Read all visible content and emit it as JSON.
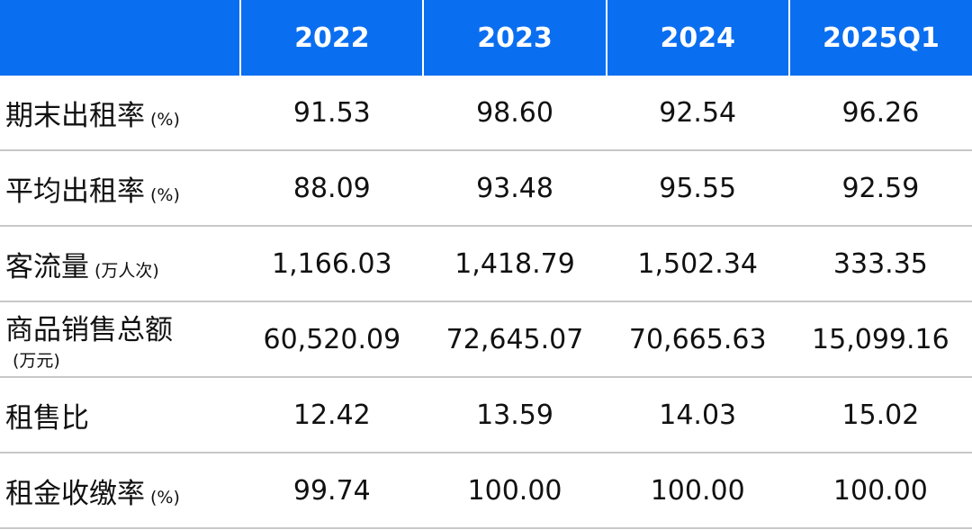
{
  "header": {
    "corner": "",
    "years": [
      "2022",
      "2023",
      "2024",
      "2025Q1"
    ]
  },
  "rows": [
    {
      "label": "期末出租率",
      "unit": "(%)",
      "values": [
        "91.53",
        "98.60",
        "92.54",
        "96.26"
      ]
    },
    {
      "label": "平均出租率",
      "unit": "(%)",
      "values": [
        "88.09",
        "93.48",
        "95.55",
        "92.59"
      ]
    },
    {
      "label": "客流量",
      "unit": "(万人次)",
      "values": [
        "1,166.03",
        "1,418.79",
        "1,502.34",
        "333.35"
      ]
    },
    {
      "label": "商品销售总额",
      "unit": "(万元)",
      "values": [
        "60,520.09",
        "72,645.07",
        "70,665.63",
        "15,099.16"
      ]
    },
    {
      "label": "租售比",
      "unit": "",
      "values": [
        "12.42",
        "13.59",
        "14.03",
        "15.02"
      ]
    },
    {
      "label": "租金收缴率",
      "unit": "(%)",
      "values": [
        "99.74",
        "100.00",
        "100.00",
        "100.00"
      ]
    }
  ],
  "colors": {
    "header_bg": "#0a6ef0",
    "header_text": "#ffffff",
    "divider": "#c8c8c8"
  }
}
